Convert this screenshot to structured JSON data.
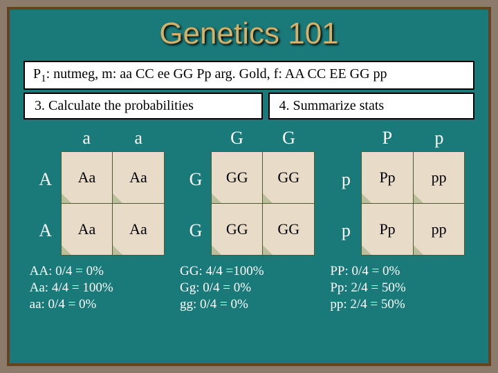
{
  "title": "Genetics 101",
  "p1_line": {
    "prefix": "P",
    "sub": "1",
    "rest": ":  nutmeg, m:  aa CC  ee  GG Pp   arg. Gold, f:  AA CC EE GG pp"
  },
  "task_left": "3.  Calculate the probabilities",
  "task_right": "4.  Summarize stats",
  "grids": [
    {
      "top": [
        "a",
        "a"
      ],
      "side": [
        "A",
        "A"
      ],
      "cells": [
        [
          "Aa",
          "Aa"
        ],
        [
          "Aa",
          "Aa"
        ]
      ]
    },
    {
      "top": [
        "G",
        "G"
      ],
      "side": [
        "G",
        "G"
      ],
      "cells": [
        [
          "GG",
          "GG"
        ],
        [
          "GG",
          "GG"
        ]
      ]
    },
    {
      "top": [
        "P",
        "p"
      ],
      "side": [
        "p",
        "p"
      ],
      "cells": [
        [
          "Pp",
          "pp"
        ],
        [
          "Pp",
          "pp"
        ]
      ]
    }
  ],
  "stats": [
    [
      "AA: 0/4 = 0%",
      "Aa: 4/4 = 100%",
      "aa: 0/4 = 0%"
    ],
    [
      "GG: 4/4 =100%",
      "Gg: 0/4 = 0%",
      "gg:  0/4 = 0%"
    ],
    [
      "PP: 0/4 = 0%",
      "Pp: 2/4 = 50%",
      "pp: 2/4 = 50%"
    ]
  ],
  "colors": {
    "bg": "#8c7a6b",
    "slide": "#1a7a7a",
    "border": "#654321",
    "title": "#d4b068",
    "cellbg": "#e8dcc8"
  }
}
